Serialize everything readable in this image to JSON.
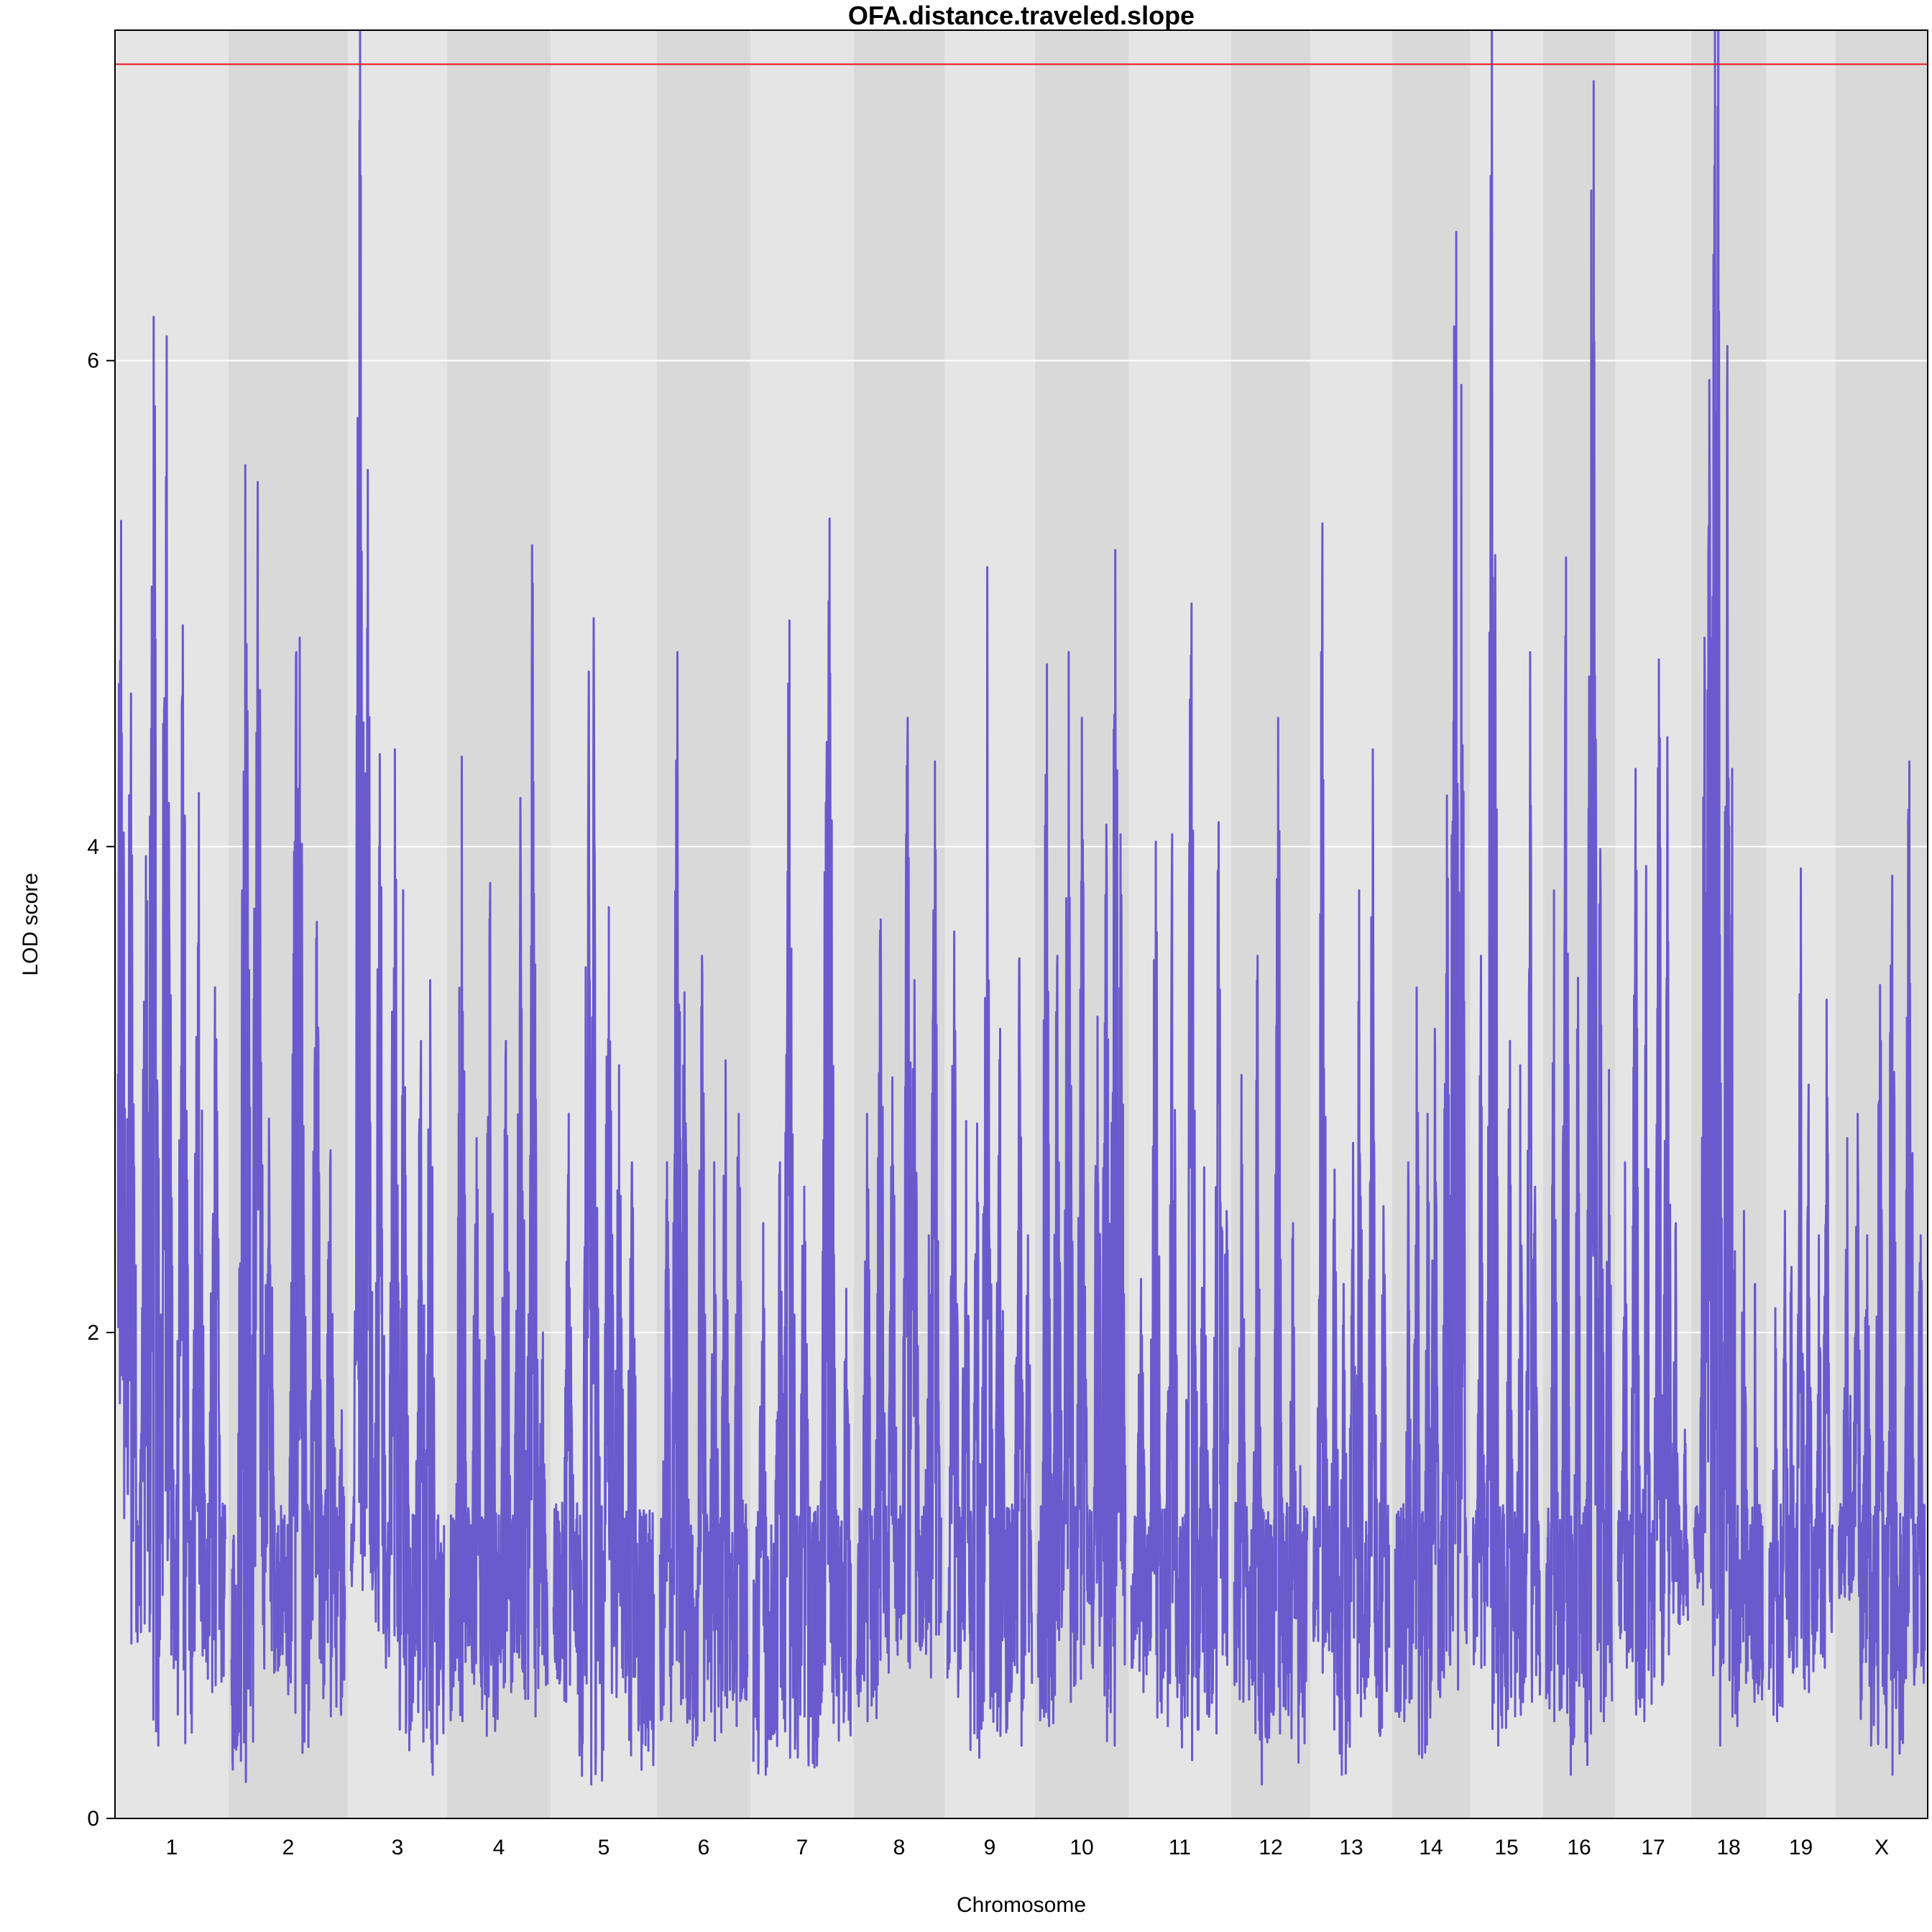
{
  "chart_data": {
    "type": "line",
    "title": "OFA.distance.traveled.slope",
    "xlabel": "Chromosome",
    "ylabel": "LOD score",
    "ylim": [
      0,
      7.36
    ],
    "yticks": [
      "0",
      "2",
      "4",
      "6"
    ],
    "grid": true,
    "colors": {
      "line": "#6a5acd",
      "threshold": "#e41a1c",
      "band_light": "#e5e5e5",
      "band_dark": "#d9d9d9",
      "gridline": "#ffffff"
    },
    "threshold": 7.22,
    "chromosomes": [
      {
        "label": "1",
        "peaks": [
          [
            0.03,
            5.34
          ],
          [
            0.12,
            4.63
          ],
          [
            0.26,
            3.96
          ],
          [
            0.33,
            6.18
          ],
          [
            0.45,
            6.1
          ],
          [
            0.6,
            4.91
          ],
          [
            0.75,
            4.22
          ],
          [
            0.9,
            3.42
          ]
        ],
        "mins": [
          0.72,
          0.3,
          0.31,
          0.52
        ]
      },
      {
        "label": "2",
        "peaks": [
          [
            0.12,
            5.57
          ],
          [
            0.23,
            5.5
          ],
          [
            0.33,
            2.88
          ],
          [
            0.57,
            4.8
          ],
          [
            0.6,
            4.86
          ],
          [
            0.75,
            3.69
          ],
          [
            0.87,
            2.75
          ],
          [
            0.97,
            1.68
          ]
        ],
        "mins": [
          0.15,
          0.6,
          0.27,
          0.42
        ]
      },
      {
        "label": "3",
        "peaks": [
          [
            0.1,
            7.55
          ],
          [
            0.18,
            5.55
          ],
          [
            0.31,
            4.38
          ],
          [
            0.47,
            4.4
          ],
          [
            0.56,
            3.82
          ],
          [
            0.75,
            3.2
          ],
          [
            0.85,
            3.45
          ]
        ],
        "mins": [
          0.94,
          0.62,
          0.28,
          0.18
        ]
      },
      {
        "label": "4",
        "peaks": [
          [
            0.12,
            4.37
          ],
          [
            0.27,
            2.8
          ],
          [
            0.41,
            3.85
          ],
          [
            0.57,
            3.2
          ],
          [
            0.72,
            4.2
          ],
          [
            0.84,
            5.24
          ],
          [
            0.95,
            2.0
          ]
        ],
        "mins": [
          0.4,
          0.34,
          0.52,
          0.42
        ]
      },
      {
        "label": "5",
        "peaks": [
          [
            0.15,
            2.9
          ],
          [
            0.35,
            4.72
          ],
          [
            0.4,
            4.94
          ],
          [
            0.55,
            3.75
          ],
          [
            0.65,
            3.1
          ],
          [
            0.78,
            2.7
          ],
          [
            0.92,
            1.25
          ]
        ],
        "mins": [
          0.48,
          0.14,
          0.5,
          0.2
        ]
      },
      {
        "label": "6",
        "peaks": [
          [
            0.08,
            2.7
          ],
          [
            0.2,
            4.8
          ],
          [
            0.28,
            3.4
          ],
          [
            0.48,
            3.55
          ],
          [
            0.62,
            2.7
          ],
          [
            0.75,
            3.12
          ],
          [
            0.9,
            2.9
          ]
        ],
        "mins": [
          0.4,
          0.3,
          0.32,
          0.38
        ]
      },
      {
        "label": "7",
        "peaks": [
          [
            0.1,
            2.45
          ],
          [
            0.27,
            2.7
          ],
          [
            0.37,
            4.93
          ],
          [
            0.52,
            2.6
          ],
          [
            0.75,
            4.43
          ],
          [
            0.78,
            5.35
          ],
          [
            0.95,
            2.18
          ]
        ],
        "mins": [
          0.18,
          0.25,
          0.21,
          0.32
        ]
      },
      {
        "label": "8",
        "peaks": [
          [
            0.12,
            2.9
          ],
          [
            0.28,
            3.7
          ],
          [
            0.42,
            3.05
          ],
          [
            0.6,
            4.53
          ],
          [
            0.68,
            3.45
          ],
          [
            0.85,
            2.4
          ],
          [
            0.92,
            4.35
          ]
        ],
        "mins": [
          0.4,
          0.6,
          0.62,
          0.58
        ]
      },
      {
        "label": "9",
        "peaks": [
          [
            0.08,
            3.65
          ],
          [
            0.22,
            2.87
          ],
          [
            0.35,
            2.86
          ],
          [
            0.47,
            5.15
          ],
          [
            0.62,
            3.25
          ],
          [
            0.85,
            3.54
          ],
          [
            0.95,
            2.4
          ]
        ],
        "mins": [
          0.5,
          0.25,
          0.34,
          0.3
        ]
      },
      {
        "label": "10",
        "peaks": [
          [
            0.1,
            4.75
          ],
          [
            0.22,
            3.55
          ],
          [
            0.35,
            4.8
          ],
          [
            0.5,
            4.53
          ],
          [
            0.68,
            3.3
          ],
          [
            0.78,
            4.09
          ],
          [
            0.88,
            5.22
          ],
          [
            0.94,
            4.05
          ]
        ],
        "mins": [
          0.38,
          0.48,
          0.62,
          0.3
        ]
      },
      {
        "label": "11",
        "peaks": [
          [
            0.1,
            2.22
          ],
          [
            0.25,
            4.02
          ],
          [
            0.42,
            4.05
          ],
          [
            0.62,
            5.0
          ],
          [
            0.75,
            2.68
          ],
          [
            0.9,
            4.1
          ],
          [
            0.98,
            2.5
          ]
        ],
        "mins": [
          0.52,
          0.38,
          0.24,
          0.35
        ]
      },
      {
        "label": "12",
        "peaks": [
          [
            0.1,
            3.06
          ],
          [
            0.32,
            3.55
          ],
          [
            0.58,
            2.5
          ],
          [
            0.6,
            4.53
          ],
          [
            0.8,
            2.45
          ],
          [
            0.9,
            1.45
          ]
        ],
        "mins": [
          0.48,
          0.14,
          0.35,
          0.23
        ]
      },
      {
        "label": "13",
        "peaks": [
          [
            0.12,
            5.33
          ],
          [
            0.28,
            2.67
          ],
          [
            0.4,
            2.2
          ],
          [
            0.52,
            2.78
          ],
          [
            0.6,
            3.82
          ],
          [
            0.78,
            4.4
          ],
          [
            0.92,
            2.52
          ]
        ],
        "mins": [
          0.6,
          0.18,
          0.42,
          0.34
        ]
      },
      {
        "label": "14",
        "peaks": [
          [
            0.18,
            2.7
          ],
          [
            0.3,
            3.42
          ],
          [
            0.45,
            2.9
          ],
          [
            0.55,
            3.25
          ],
          [
            0.72,
            4.21
          ],
          [
            0.82,
            6.14
          ],
          [
            0.85,
            6.53
          ],
          [
            0.92,
            5.9
          ]
        ],
        "mins": [
          0.4,
          0.25,
          0.5,
          0.53
        ]
      },
      {
        "label": "15",
        "peaks": [
          [
            0.12,
            3.55
          ],
          [
            0.28,
            7.55
          ],
          [
            0.33,
            5.2
          ],
          [
            0.55,
            3.2
          ],
          [
            0.7,
            3.1
          ],
          [
            0.85,
            4.8
          ],
          [
            0.92,
            2.6
          ]
        ],
        "mins": [
          0.62,
          0.3,
          0.42,
          0.48
        ]
      },
      {
        "label": "16",
        "peaks": [
          [
            0.12,
            3.82
          ],
          [
            0.3,
            5.19
          ],
          [
            0.48,
            3.46
          ],
          [
            0.68,
            6.7
          ],
          [
            0.72,
            7.15
          ],
          [
            0.82,
            3.99
          ],
          [
            0.95,
            3.08
          ]
        ],
        "mins": [
          0.4,
          0.18,
          0.22,
          0.4
        ]
      },
      {
        "label": "17",
        "peaks": [
          [
            0.1,
            2.7
          ],
          [
            0.25,
            4.32
          ],
          [
            0.4,
            3.92
          ],
          [
            0.58,
            4.77
          ],
          [
            0.7,
            4.45
          ],
          [
            0.82,
            2.45
          ],
          [
            0.95,
            1.6
          ]
        ],
        "mins": [
          0.62,
          0.4,
          0.55,
          0.8
        ]
      },
      {
        "label": "18",
        "peaks": [
          [
            0.15,
            4.86
          ],
          [
            0.22,
            5.92
          ],
          [
            0.3,
            7.55
          ],
          [
            0.35,
            7.38
          ],
          [
            0.48,
            6.06
          ],
          [
            0.55,
            4.32
          ],
          [
            0.72,
            2.5
          ],
          [
            0.88,
            2.2
          ]
        ],
        "mins": [
          0.88,
          0.3,
          0.38,
          0.48
        ]
      },
      {
        "label": "19",
        "peaks": [
          [
            0.1,
            2.1
          ],
          [
            0.25,
            2.5
          ],
          [
            0.35,
            2.27
          ],
          [
            0.5,
            3.91
          ],
          [
            0.62,
            3.02
          ],
          [
            0.78,
            2.4
          ],
          [
            0.9,
            3.37
          ]
        ],
        "mins": [
          0.4,
          0.6,
          0.52,
          0.62
        ]
      },
      {
        "label": "X",
        "peaks": [
          [
            0.1,
            2.8
          ],
          [
            0.22,
            2.9
          ],
          [
            0.33,
            2.4
          ],
          [
            0.48,
            3.43
          ],
          [
            0.62,
            3.88
          ],
          [
            0.82,
            4.35
          ],
          [
            0.95,
            2.4
          ]
        ],
        "mins": [
          0.9,
          0.3,
          0.18,
          0.55
        ]
      }
    ]
  }
}
